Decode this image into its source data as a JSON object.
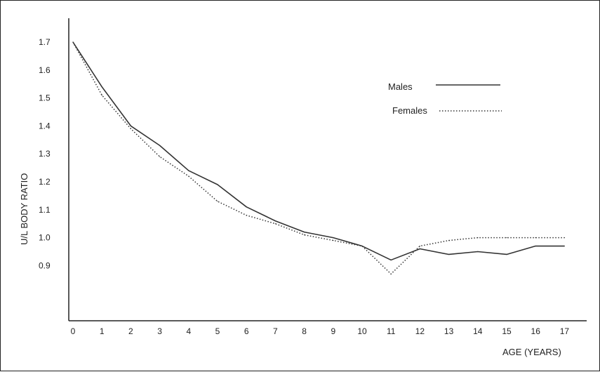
{
  "chart_data": {
    "type": "line",
    "title": "",
    "xlabel": "AGE (YEARS)",
    "ylabel": "U/L BODY RATIO",
    "x": [
      0,
      1,
      2,
      3,
      4,
      5,
      6,
      7,
      8,
      9,
      10,
      11,
      12,
      13,
      14,
      15,
      16,
      17
    ],
    "x_ticks": [
      "0",
      "1",
      "2",
      "3",
      "4",
      "5",
      "6",
      "7",
      "8",
      "9",
      "10",
      "11",
      "12",
      "13",
      "14",
      "15",
      "16",
      "17"
    ],
    "y_ticks": [
      "0.9",
      "1.0",
      "1.1",
      "1.2",
      "1.3",
      "1.4",
      "1.5",
      "1.6",
      "1.7"
    ],
    "xlim": [
      0,
      17.5
    ],
    "ylim": [
      0.75,
      1.8
    ],
    "grid": false,
    "legend_position": "top-right",
    "series": [
      {
        "name": "Males",
        "style": "solid",
        "color": "#333333",
        "values": [
          1.7,
          1.54,
          1.4,
          1.33,
          1.24,
          1.19,
          1.11,
          1.06,
          1.02,
          1.0,
          0.97,
          0.92,
          0.96,
          0.94,
          0.95,
          0.94,
          0.97,
          0.97
        ]
      },
      {
        "name": "Females",
        "style": "dotted",
        "color": "#333333",
        "values": [
          1.7,
          1.51,
          1.39,
          1.29,
          1.22,
          1.13,
          1.08,
          1.05,
          1.01,
          0.99,
          0.97,
          0.87,
          0.97,
          0.99,
          1.0,
          1.0,
          1.0,
          1.0
        ]
      }
    ]
  }
}
